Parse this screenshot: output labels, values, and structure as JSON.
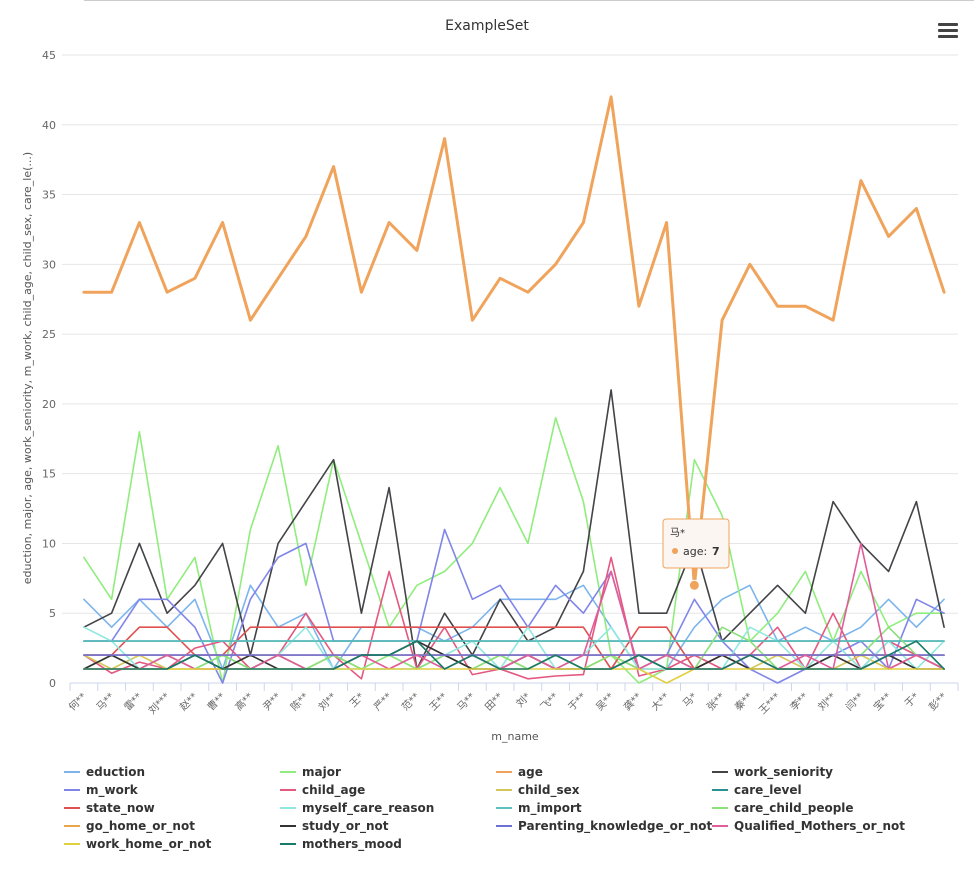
{
  "toolbar": {
    "menu_icon": "hamburger-menu-icon"
  },
  "tooltip": {
    "category": "马*",
    "series": "age",
    "value": 7,
    "label": "age:",
    "value_text": "7",
    "color": "#f0a35b"
  },
  "chart_data": {
    "type": "line",
    "title": "ExampleSet",
    "xlabel": "m_name",
    "ylabel": "eduction, major, age, work_seniority, m_work, child_age, child_sex, care_le(...)",
    "ylim": [
      0,
      45
    ],
    "yticks": [
      0,
      5,
      10,
      15,
      20,
      25,
      30,
      35,
      40,
      45
    ],
    "grid": true,
    "legend_position": "bottom",
    "categories": [
      "何**",
      "马**",
      "雷**",
      "刘***",
      "赵**",
      "曹**",
      "高**",
      "尹**",
      "陈**",
      "刘**",
      "王*",
      "严**",
      "范**",
      "王**",
      "马**",
      "田**",
      "刘*",
      "飞**",
      "于**",
      "吴**",
      "龚**",
      "大**",
      "马*",
      "张**",
      "秦**",
      "王***",
      "李**",
      "刘**",
      "闫**",
      "宝**",
      "于*",
      "彭**"
    ],
    "series": [
      {
        "name": "eduction",
        "color": "#7cb5ec",
        "values": [
          6,
          4,
          6,
          4,
          6,
          1,
          7,
          4,
          5,
          1,
          4,
          4,
          4,
          3,
          4,
          6,
          6,
          6,
          7,
          4,
          1,
          1,
          4,
          6,
          7,
          3,
          4,
          3,
          4,
          6,
          4,
          6
        ]
      },
      {
        "name": "major",
        "color": "#90ed7d",
        "values": [
          9,
          6,
          18,
          6,
          9,
          0,
          11,
          17,
          7,
          16,
          10,
          4,
          7,
          8,
          10,
          14,
          10,
          19,
          13,
          2,
          0,
          1,
          16,
          12,
          3,
          5,
          8,
          3,
          8,
          4,
          5,
          5
        ]
      },
      {
        "name": "age",
        "color": "#f0a35b",
        "values": [
          28,
          28,
          33,
          28,
          29,
          33,
          26,
          29,
          32,
          37,
          28,
          33,
          31,
          39,
          26,
          29,
          28,
          30,
          33,
          42,
          27,
          33,
          7,
          26,
          30,
          27,
          27,
          26,
          36,
          32,
          34,
          28
        ]
      },
      {
        "name": "work_seniority",
        "color": "#434348",
        "values": [
          4,
          5,
          10,
          5,
          7,
          10,
          2,
          10,
          13,
          16,
          5,
          14,
          1,
          5,
          2,
          6,
          3,
          4,
          8,
          21,
          5,
          5,
          10,
          3,
          5,
          7,
          5,
          13,
          10,
          8,
          13,
          4
        ]
      },
      {
        "name": "m_work",
        "color": "#8085e9",
        "values": [
          3,
          3,
          6,
          6,
          4,
          0,
          6,
          9,
          10,
          3,
          3,
          3,
          3,
          11,
          6,
          7,
          4,
          7,
          5,
          8,
          1,
          2,
          6,
          3,
          1,
          0,
          1,
          2,
          3,
          1,
          6,
          5
        ]
      },
      {
        "name": "child_age",
        "color": "#e4587f",
        "values": [
          2,
          0.7,
          1.5,
          1,
          2.5,
          3,
          1,
          2,
          5,
          2,
          0.3,
          8,
          1,
          4,
          0.6,
          1,
          0.3,
          0.5,
          0.6,
          9,
          0.5,
          1,
          2,
          1,
          2,
          4,
          1,
          5,
          1,
          3,
          2,
          1
        ]
      },
      {
        "name": "child_sex",
        "color": "#d4c75a",
        "values": [
          2,
          1,
          2,
          1,
          1,
          1,
          2,
          2,
          1,
          2,
          1,
          1,
          2,
          2,
          1,
          2,
          1,
          2,
          1,
          2,
          1,
          1,
          1,
          2,
          1,
          2,
          1,
          1,
          2,
          1,
          2,
          1
        ]
      },
      {
        "name": "care_level",
        "color": "#2b908f",
        "values": [
          3,
          3,
          3,
          3,
          3,
          3,
          3,
          3,
          3,
          3,
          3,
          3,
          3,
          3,
          3,
          3,
          3,
          3,
          3,
          3,
          3,
          3,
          3,
          3,
          3,
          3,
          3,
          3,
          3,
          3,
          3,
          3
        ]
      },
      {
        "name": "state_now",
        "color": "#e05050",
        "values": [
          2,
          2,
          4,
          4,
          2,
          2,
          4,
          4,
          4,
          4,
          4,
          4,
          4,
          4,
          4,
          4,
          4,
          4,
          4,
          1,
          4,
          4,
          1,
          2,
          2,
          2,
          2,
          2,
          2,
          2,
          2,
          1
        ]
      },
      {
        "name": "myself_care_reason",
        "color": "#91e8e1",
        "values": [
          4,
          3,
          1,
          2,
          1,
          2,
          1,
          2,
          4,
          1,
          1,
          1,
          1,
          2,
          3,
          1,
          4,
          1,
          2,
          4,
          1,
          1,
          1,
          1,
          4,
          3,
          1,
          3,
          1,
          3,
          1,
          3
        ]
      },
      {
        "name": "m_import",
        "color": "#5fbfbf",
        "values": [
          3,
          3,
          3,
          3,
          3,
          3,
          3,
          3,
          3,
          3,
          3,
          3,
          3,
          3,
          3,
          3,
          3,
          3,
          3,
          3,
          3,
          3,
          3,
          3,
          3,
          3,
          3,
          3,
          3,
          3,
          3,
          3
        ]
      },
      {
        "name": "care_child_people",
        "color": "#8be07a",
        "values": [
          1,
          2,
          1,
          2,
          1,
          2,
          1,
          2,
          1,
          2,
          1,
          2,
          1,
          2,
          1,
          2,
          1,
          2,
          1,
          2,
          1,
          2,
          1,
          4,
          3,
          1,
          1,
          2,
          2,
          4,
          2,
          1
        ]
      },
      {
        "name": "go_home_or_not",
        "color": "#e8a64a",
        "values": [
          2,
          2,
          2,
          2,
          2,
          2,
          2,
          2,
          2,
          2,
          2,
          2,
          2,
          2,
          2,
          2,
          2,
          2,
          2,
          2,
          2,
          2,
          2,
          2,
          2,
          2,
          2,
          2,
          2,
          2,
          2,
          2
        ]
      },
      {
        "name": "study_or_not",
        "color": "#333333",
        "values": [
          1,
          2,
          1,
          1,
          2,
          1,
          2,
          1,
          1,
          1,
          2,
          2,
          3,
          2,
          1,
          1,
          2,
          1,
          1,
          1,
          2,
          1,
          1,
          2,
          1,
          1,
          1,
          2,
          1,
          2,
          1,
          1
        ]
      },
      {
        "name": "Parenting_knowledge_or_not",
        "color": "#6f6fd8",
        "values": [
          2,
          2,
          2,
          2,
          2,
          2,
          2,
          2,
          2,
          2,
          2,
          2,
          2,
          2,
          2,
          2,
          2,
          2,
          2,
          2,
          2,
          2,
          2,
          2,
          2,
          2,
          2,
          2,
          2,
          2,
          2,
          2
        ]
      },
      {
        "name": "Qualified_Mothers_or_not",
        "color": "#e05c9a",
        "values": [
          1,
          1,
          1,
          2,
          1,
          1,
          1,
          2,
          1,
          1,
          2,
          1,
          2,
          1,
          2,
          1,
          2,
          1,
          2,
          8,
          1,
          2,
          1,
          1,
          2,
          1,
          2,
          1,
          10,
          1,
          2,
          1
        ]
      },
      {
        "name": "work_home_or_not",
        "color": "#e0d040",
        "values": [
          1,
          1,
          1,
          1,
          1,
          1,
          1,
          1,
          1,
          1,
          1,
          1,
          1,
          1,
          1,
          1,
          1,
          1,
          1,
          1,
          1,
          0,
          1,
          1,
          1,
          1,
          1,
          1,
          1,
          1,
          1,
          1
        ]
      },
      {
        "name": "mothers_mood",
        "color": "#1a7a6a",
        "values": [
          1,
          1,
          1,
          1,
          2,
          1,
          1,
          1,
          1,
          1,
          2,
          2,
          3,
          1,
          2,
          1,
          1,
          2,
          1,
          1,
          2,
          1,
          1,
          1,
          2,
          1,
          1,
          1,
          1,
          2,
          3,
          1
        ]
      }
    ]
  }
}
